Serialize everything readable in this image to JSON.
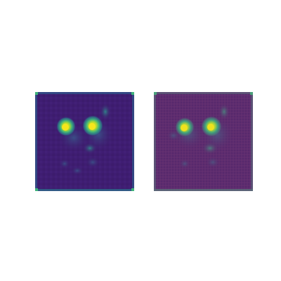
{
  "figure": {
    "panels": [
      {
        "name": "attention-heatmap",
        "colormap": "viridis",
        "colors": {
          "background": "#3d1c6e",
          "edge": "#2a7f8a",
          "mid": "#2f9c8c",
          "peak": "#f2e51f"
        }
      },
      {
        "name": "heatmap-overlay",
        "colormap": "viridis-overlay",
        "colors": {
          "background": "#5a2a6e",
          "edge": "#4a8a6a",
          "mid": "#3aa087",
          "peak": "#e8e020"
        }
      }
    ]
  }
}
